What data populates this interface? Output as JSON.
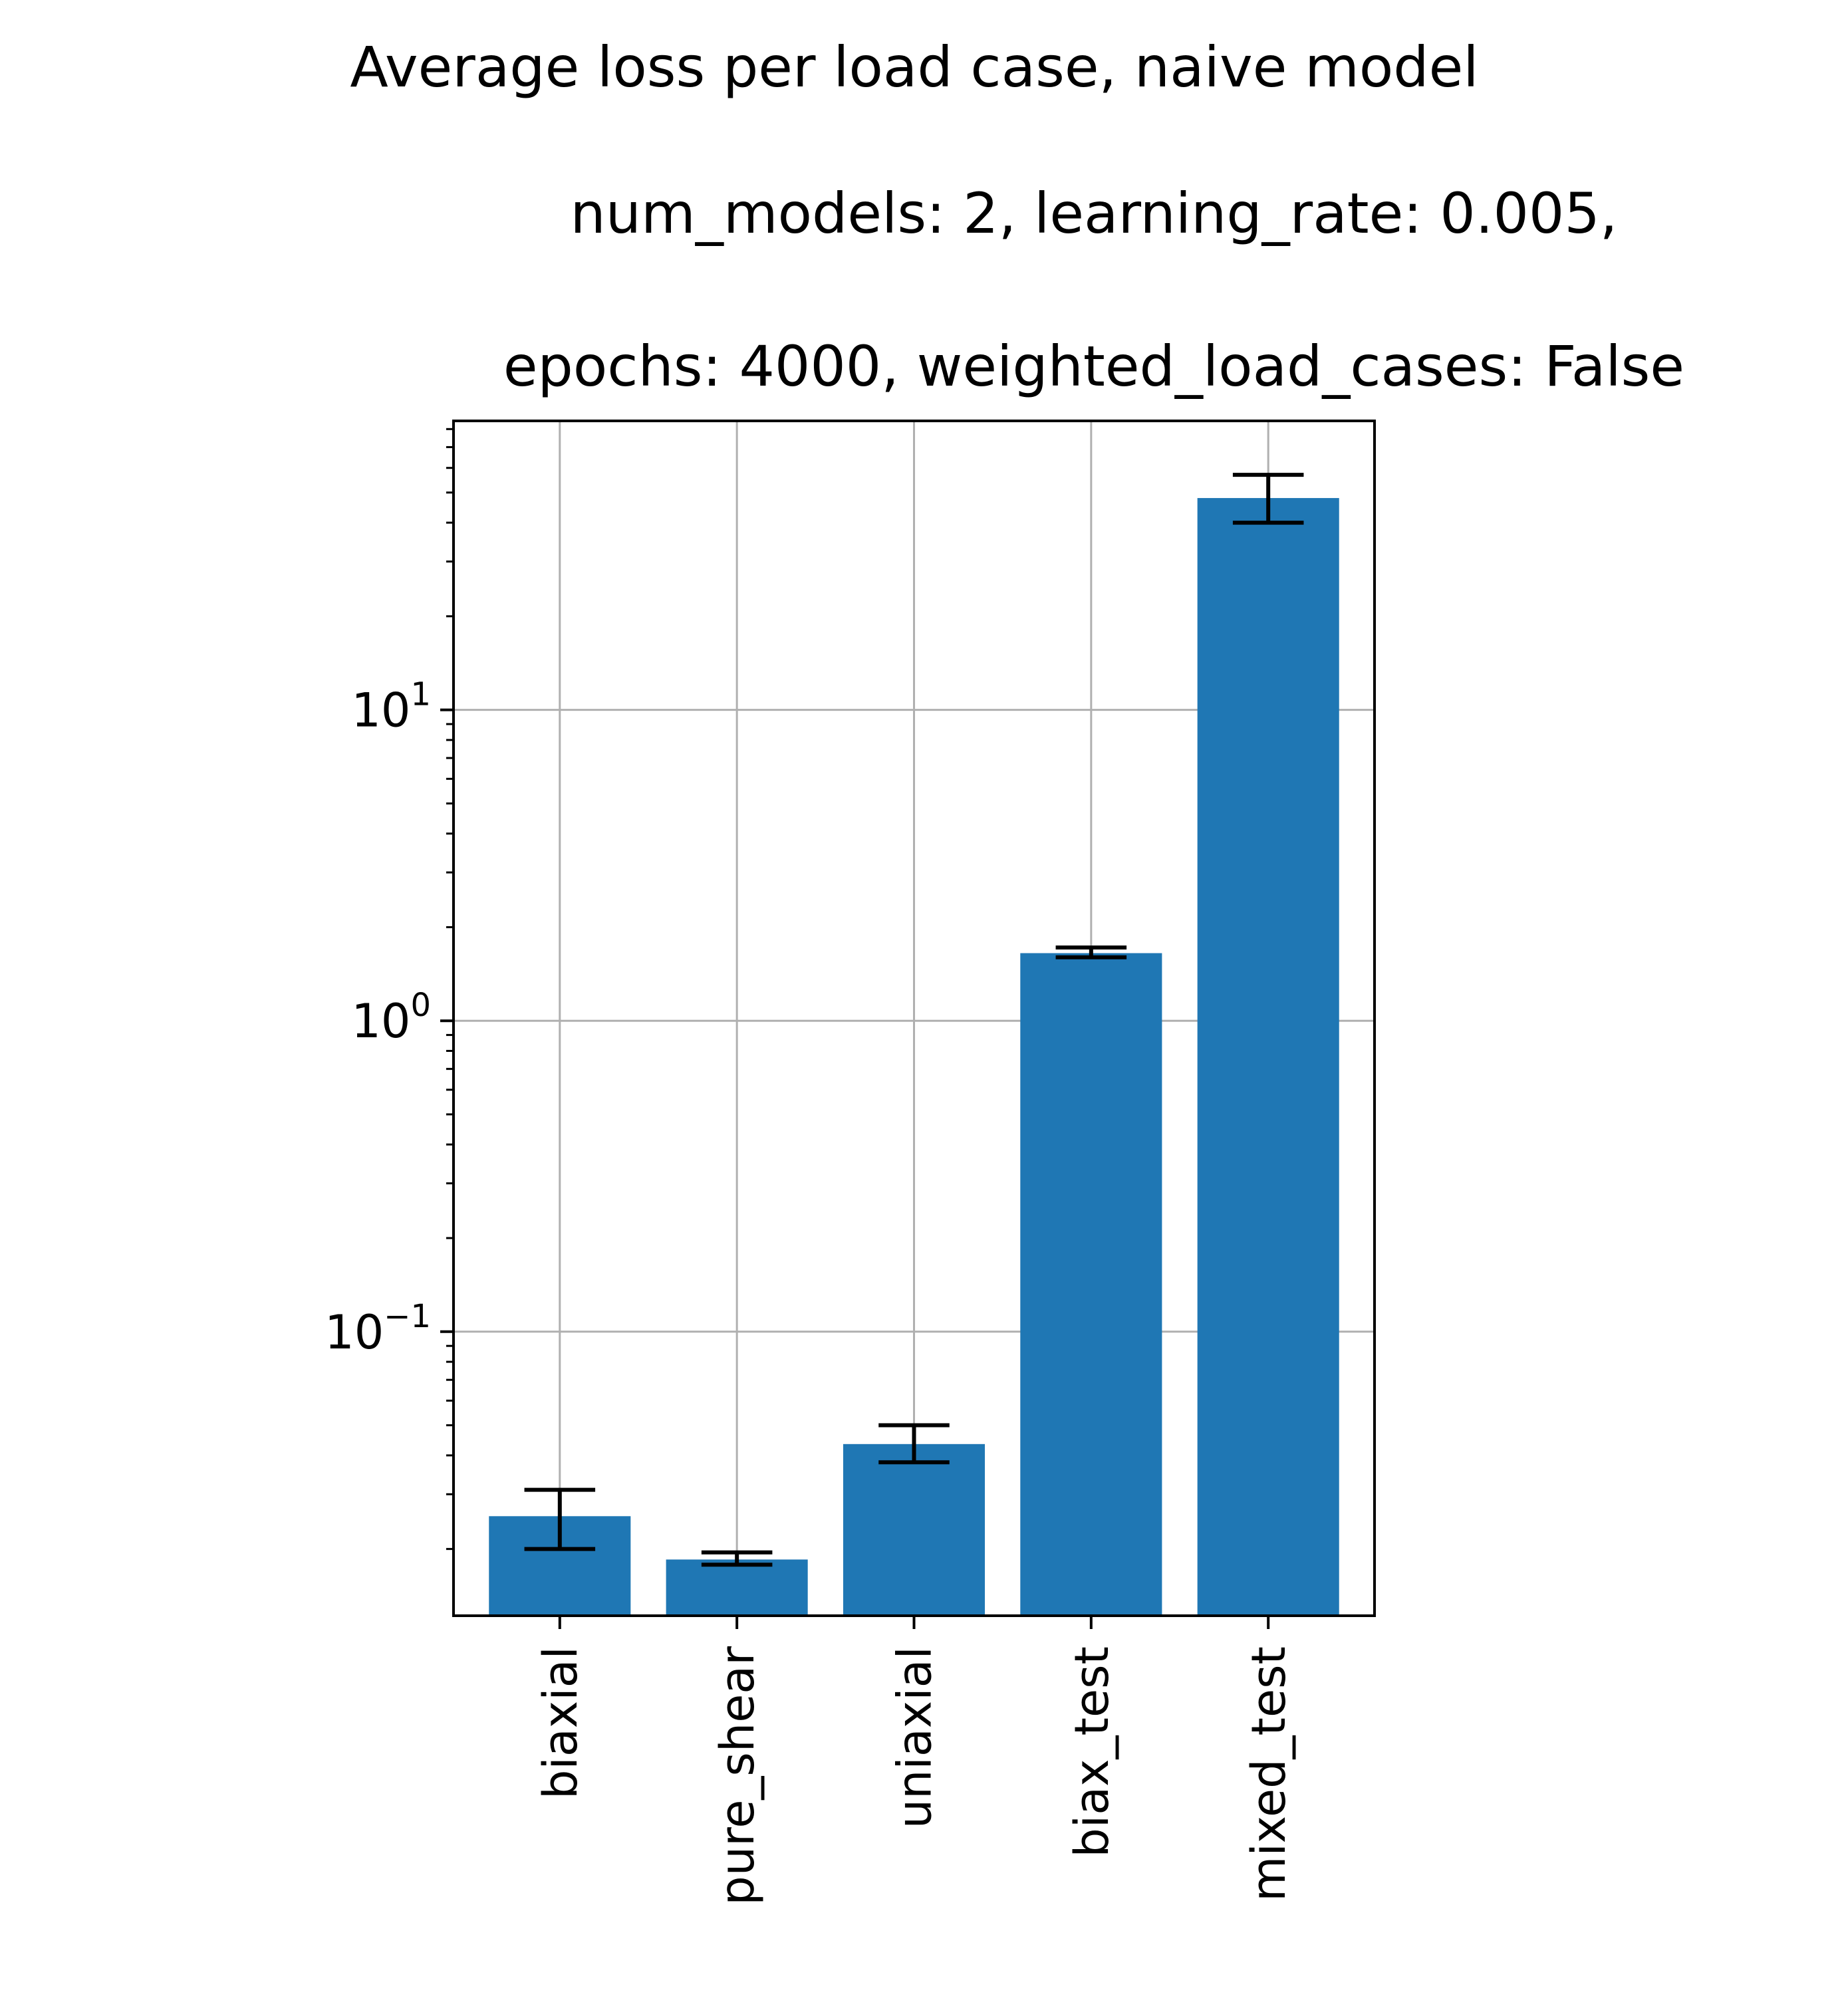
{
  "chart_data": {
    "type": "bar",
    "title_lines": [
      "Average loss per load case, naive model",
      "num_models: 2, learning_rate: 0.005,",
      "epochs: 4000, weighted_load_cases: False"
    ],
    "xlabel": "",
    "ylabel": "",
    "yscale": "log",
    "ylim": [
      0.0122,
      85
    ],
    "y_tick_labels": [
      {
        "value": 0.1,
        "base": "10",
        "exp": "−1"
      },
      {
        "value": 1,
        "base": "10",
        "exp": "0"
      },
      {
        "value": 10,
        "base": "10",
        "exp": "1"
      }
    ],
    "categories": [
      "biaxial",
      "pure_shear",
      "uniaxial",
      "biax_test",
      "mixed_test"
    ],
    "values": [
      0.0255,
      0.0185,
      0.0435,
      1.65,
      48
    ],
    "error_low": [
      0.02,
      0.0178,
      0.038,
      1.6,
      40
    ],
    "error_high": [
      0.031,
      0.0195,
      0.05,
      1.72,
      57
    ],
    "grid": true,
    "legend": "none",
    "bar_color": "#1f77b4",
    "error_color": "#000000",
    "grid_color": "#b0b0b0"
  }
}
